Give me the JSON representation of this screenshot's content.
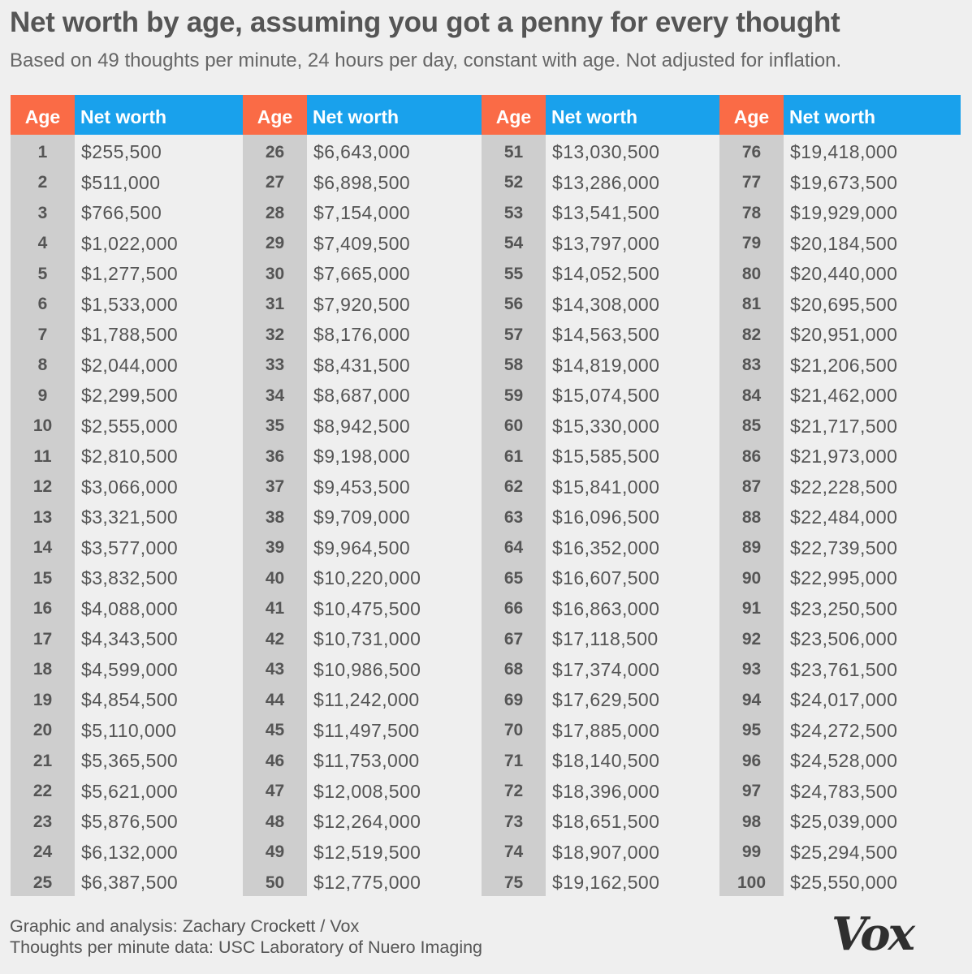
{
  "chart_data": {
    "type": "table",
    "title": "Net worth by age, assuming you got a penny for every thought",
    "subtitle": "Based on 49 thoughts per minute, 24 hours per day, constant with age. Not adjusted for inflation.",
    "columns": [
      "Age",
      "Net worth"
    ],
    "rows": [
      {
        "age": "1",
        "net_worth": "$255,500"
      },
      {
        "age": "2",
        "net_worth": "$511,000"
      },
      {
        "age": "3",
        "net_worth": "$766,500"
      },
      {
        "age": "4",
        "net_worth": "$1,022,000"
      },
      {
        "age": "5",
        "net_worth": "$1,277,500"
      },
      {
        "age": "6",
        "net_worth": "$1,533,000"
      },
      {
        "age": "7",
        "net_worth": "$1,788,500"
      },
      {
        "age": "8",
        "net_worth": "$2,044,000"
      },
      {
        "age": "9",
        "net_worth": "$2,299,500"
      },
      {
        "age": "10",
        "net_worth": "$2,555,000"
      },
      {
        "age": "11",
        "net_worth": "$2,810,500"
      },
      {
        "age": "12",
        "net_worth": "$3,066,000"
      },
      {
        "age": "13",
        "net_worth": "$3,321,500"
      },
      {
        "age": "14",
        "net_worth": "$3,577,000"
      },
      {
        "age": "15",
        "net_worth": "$3,832,500"
      },
      {
        "age": "16",
        "net_worth": "$4,088,000"
      },
      {
        "age": "17",
        "net_worth": "$4,343,500"
      },
      {
        "age": "18",
        "net_worth": "$4,599,000"
      },
      {
        "age": "19",
        "net_worth": "$4,854,500"
      },
      {
        "age": "20",
        "net_worth": "$5,110,000"
      },
      {
        "age": "21",
        "net_worth": "$5,365,500"
      },
      {
        "age": "22",
        "net_worth": "$5,621,000"
      },
      {
        "age": "23",
        "net_worth": "$5,876,500"
      },
      {
        "age": "24",
        "net_worth": "$6,132,000"
      },
      {
        "age": "25",
        "net_worth": "$6,387,500"
      },
      {
        "age": "26",
        "net_worth": "$6,643,000"
      },
      {
        "age": "27",
        "net_worth": "$6,898,500"
      },
      {
        "age": "28",
        "net_worth": "$7,154,000"
      },
      {
        "age": "29",
        "net_worth": "$7,409,500"
      },
      {
        "age": "30",
        "net_worth": "$7,665,000"
      },
      {
        "age": "31",
        "net_worth": "$7,920,500"
      },
      {
        "age": "32",
        "net_worth": "$8,176,000"
      },
      {
        "age": "33",
        "net_worth": "$8,431,500"
      },
      {
        "age": "34",
        "net_worth": "$8,687,000"
      },
      {
        "age": "35",
        "net_worth": "$8,942,500"
      },
      {
        "age": "36",
        "net_worth": "$9,198,000"
      },
      {
        "age": "37",
        "net_worth": "$9,453,500"
      },
      {
        "age": "38",
        "net_worth": "$9,709,000"
      },
      {
        "age": "39",
        "net_worth": "$9,964,500"
      },
      {
        "age": "40",
        "net_worth": "$10,220,000"
      },
      {
        "age": "41",
        "net_worth": "$10,475,500"
      },
      {
        "age": "42",
        "net_worth": "$10,731,000"
      },
      {
        "age": "43",
        "net_worth": "$10,986,500"
      },
      {
        "age": "44",
        "net_worth": "$11,242,000"
      },
      {
        "age": "45",
        "net_worth": "$11,497,500"
      },
      {
        "age": "46",
        "net_worth": "$11,753,000"
      },
      {
        "age": "47",
        "net_worth": "$12,008,500"
      },
      {
        "age": "48",
        "net_worth": "$12,264,000"
      },
      {
        "age": "49",
        "net_worth": "$12,519,500"
      },
      {
        "age": "50",
        "net_worth": "$12,775,000"
      },
      {
        "age": "51",
        "net_worth": "$13,030,500"
      },
      {
        "age": "52",
        "net_worth": "$13,286,000"
      },
      {
        "age": "53",
        "net_worth": "$13,541,500"
      },
      {
        "age": "54",
        "net_worth": "$13,797,000"
      },
      {
        "age": "55",
        "net_worth": "$14,052,500"
      },
      {
        "age": "56",
        "net_worth": "$14,308,000"
      },
      {
        "age": "57",
        "net_worth": "$14,563,500"
      },
      {
        "age": "58",
        "net_worth": "$14,819,000"
      },
      {
        "age": "59",
        "net_worth": "$15,074,500"
      },
      {
        "age": "60",
        "net_worth": "$15,330,000"
      },
      {
        "age": "61",
        "net_worth": "$15,585,500"
      },
      {
        "age": "62",
        "net_worth": "$15,841,000"
      },
      {
        "age": "63",
        "net_worth": "$16,096,500"
      },
      {
        "age": "64",
        "net_worth": "$16,352,000"
      },
      {
        "age": "65",
        "net_worth": "$16,607,500"
      },
      {
        "age": "66",
        "net_worth": "$16,863,000"
      },
      {
        "age": "67",
        "net_worth": "$17,118,500"
      },
      {
        "age": "68",
        "net_worth": "$17,374,000"
      },
      {
        "age": "69",
        "net_worth": "$17,629,500"
      },
      {
        "age": "70",
        "net_worth": "$17,885,000"
      },
      {
        "age": "71",
        "net_worth": "$18,140,500"
      },
      {
        "age": "72",
        "net_worth": "$18,396,000"
      },
      {
        "age": "73",
        "net_worth": "$18,651,500"
      },
      {
        "age": "74",
        "net_worth": "$18,907,000"
      },
      {
        "age": "75",
        "net_worth": "$19,162,500"
      },
      {
        "age": "76",
        "net_worth": "$19,418,000"
      },
      {
        "age": "77",
        "net_worth": "$19,673,500"
      },
      {
        "age": "78",
        "net_worth": "$19,929,000"
      },
      {
        "age": "79",
        "net_worth": "$20,184,500"
      },
      {
        "age": "80",
        "net_worth": "$20,440,000"
      },
      {
        "age": "81",
        "net_worth": "$20,695,500"
      },
      {
        "age": "82",
        "net_worth": "$20,951,000"
      },
      {
        "age": "83",
        "net_worth": "$21,206,500"
      },
      {
        "age": "84",
        "net_worth": "$21,462,000"
      },
      {
        "age": "85",
        "net_worth": "$21,717,500"
      },
      {
        "age": "86",
        "net_worth": "$21,973,000"
      },
      {
        "age": "87",
        "net_worth": "$22,228,500"
      },
      {
        "age": "88",
        "net_worth": "$22,484,000"
      },
      {
        "age": "89",
        "net_worth": "$22,739,500"
      },
      {
        "age": "90",
        "net_worth": "$22,995,000"
      },
      {
        "age": "91",
        "net_worth": "$23,250,500"
      },
      {
        "age": "92",
        "net_worth": "$23,506,000"
      },
      {
        "age": "93",
        "net_worth": "$23,761,500"
      },
      {
        "age": "94",
        "net_worth": "$24,017,000"
      },
      {
        "age": "95",
        "net_worth": "$24,272,500"
      },
      {
        "age": "96",
        "net_worth": "$24,528,000"
      },
      {
        "age": "97",
        "net_worth": "$24,783,500"
      },
      {
        "age": "98",
        "net_worth": "$25,039,000"
      },
      {
        "age": "99",
        "net_worth": "$25,294,500"
      },
      {
        "age": "100",
        "net_worth": "$25,550,000"
      }
    ]
  },
  "footer": {
    "line1": "Graphic and analysis: Zachary Crockett / Vox",
    "line2": "Thoughts per minute data: USC Laboratory of Nuero Imaging"
  },
  "logo": "Vox",
  "colors": {
    "age_header": "#fa6b46",
    "networth_header": "#19a1ec",
    "age_column": "#cecece",
    "background": "#efefef"
  }
}
